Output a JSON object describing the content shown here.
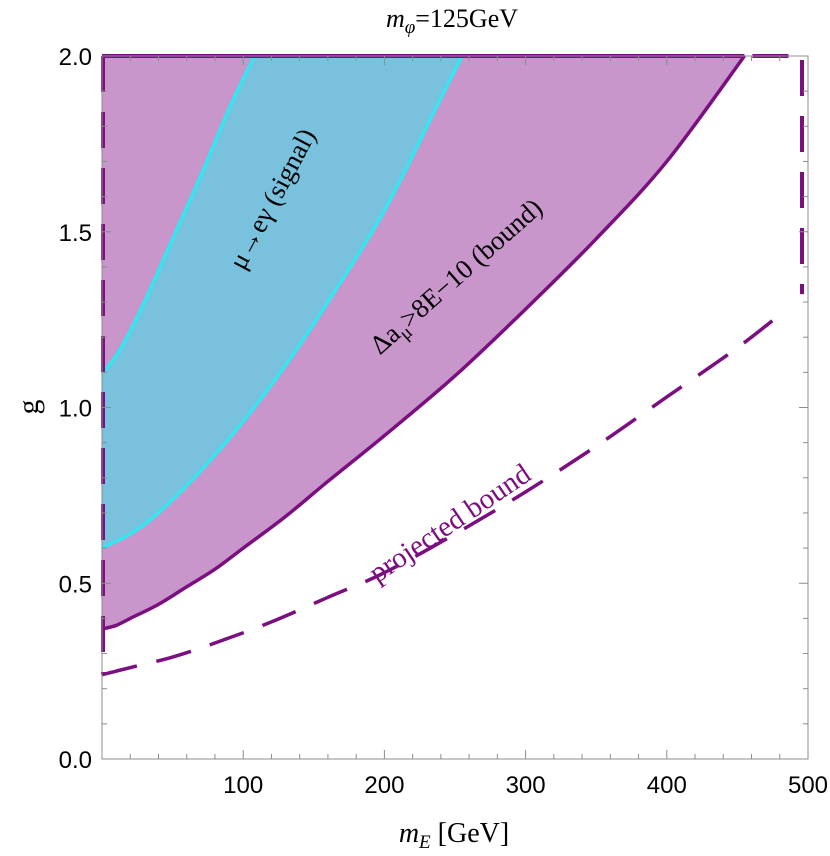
{
  "chart_data": {
    "type": "area",
    "title": "m_φ=125GeV",
    "title_parts": {
      "symbol": "m",
      "sub": "φ",
      "rest": "=125GeV"
    },
    "xlabel": "m_E [GeV]",
    "xlabel_parts": {
      "symbol": "m",
      "sub": "E",
      "rest": " [GeV]"
    },
    "ylabel": "g",
    "xlim": [
      0,
      500
    ],
    "ylim": [
      0,
      2
    ],
    "x_ticks": [
      100,
      200,
      300,
      400,
      500
    ],
    "x_tick_labels": [
      "100",
      "200",
      "300",
      "400",
      "500"
    ],
    "y_ticks": [
      0,
      0.5,
      1,
      1.5,
      2
    ],
    "y_tick_labels": [
      "0.0",
      "0.5",
      "1.0",
      "1.5",
      "2.0"
    ],
    "x_minor_step": 20,
    "y_minor_step": 0.1,
    "grid": false,
    "colors": {
      "bound_fill": "#c896ca",
      "bound_line": "#7b0f80",
      "signal_fill": "#7ac1de",
      "signal_line": "#33e6f0",
      "projected_line": "#7b0f80",
      "label_purple": "#7b0f80"
    },
    "series": [
      {
        "name": "Δa_μ>8E−10 (bound)",
        "label_parts": {
          "pre": "Δa",
          "sub": "μ",
          "post": ">8E−10 (bound)"
        },
        "style": "filled-region-solid-boundary",
        "lower_boundary": {
          "x": [
            0,
            10,
            20,
            40,
            60,
            80,
            100,
            130,
            160,
            200,
            250,
            300,
            350,
            400,
            455
          ],
          "y": [
            0.37,
            0.38,
            0.4,
            0.44,
            0.49,
            0.54,
            0.6,
            0.69,
            0.79,
            0.92,
            1.09,
            1.28,
            1.48,
            1.7,
            2.0
          ]
        },
        "upper_boundary": 2.0
      },
      {
        "name": "μ→eγ (signal)",
        "style": "filled-band",
        "left_boundary": {
          "x": [
            0,
            5,
            15,
            30,
            50,
            70,
            90,
            108
          ],
          "y": [
            1.1,
            1.12,
            1.18,
            1.3,
            1.48,
            1.66,
            1.85,
            2.0
          ]
        },
        "right_boundary": {
          "x": [
            0,
            5,
            20,
            40,
            70,
            100,
            130,
            160,
            200,
            240,
            255
          ],
          "y": [
            0.6,
            0.61,
            0.64,
            0.7,
            0.82,
            0.96,
            1.12,
            1.3,
            1.56,
            1.88,
            2.0
          ]
        }
      },
      {
        "name": "projected bound",
        "style": "dashed-line",
        "x": [
          0,
          10,
          25,
          50,
          80,
          120,
          160,
          200,
          250,
          300,
          350,
          400,
          450,
          485
        ],
        "y": [
          0.24,
          0.25,
          0.265,
          0.29,
          0.33,
          0.39,
          0.46,
          0.53,
          0.64,
          0.76,
          0.89,
          1.03,
          1.17,
          1.28
        ]
      }
    ]
  }
}
